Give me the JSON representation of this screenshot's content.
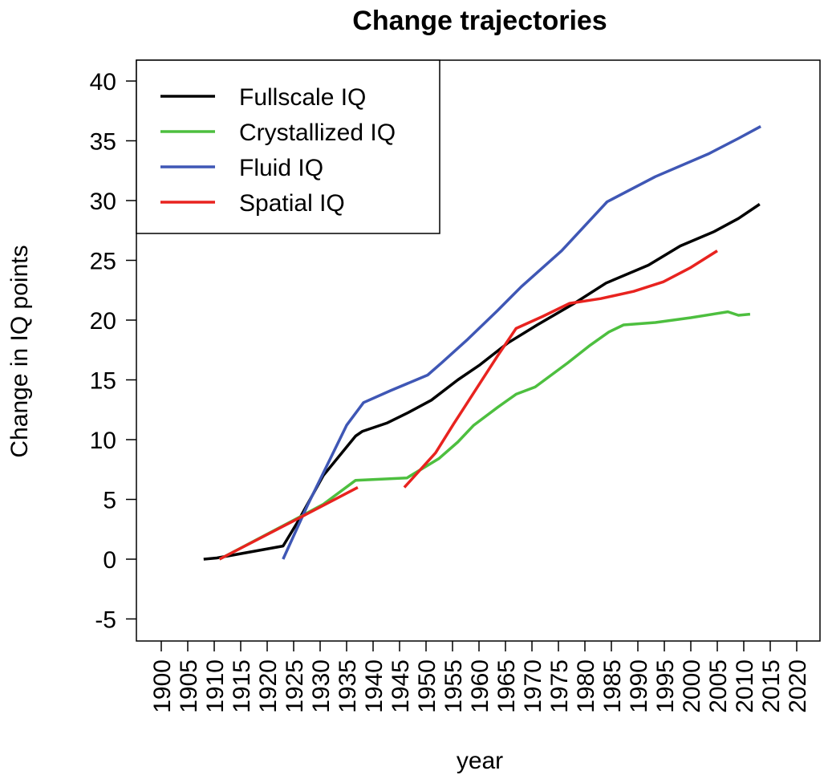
{
  "chart_data": {
    "type": "line",
    "title": "Change trajectories",
    "xlabel": "year",
    "ylabel": "Change in IQ points",
    "xlim": [
      1895,
      2025
    ],
    "ylim": [
      -7,
      42
    ],
    "xticks": [
      1900,
      1905,
      1910,
      1915,
      1920,
      1925,
      1930,
      1935,
      1940,
      1945,
      1950,
      1955,
      1960,
      1965,
      1970,
      1975,
      1980,
      1985,
      1990,
      1995,
      2000,
      2005,
      2010,
      2015,
      2020
    ],
    "yticks": [
      -5,
      0,
      5,
      10,
      15,
      20,
      25,
      30,
      35,
      40
    ],
    "grid": false,
    "legend_position": "top-left",
    "series": [
      {
        "name": "Fullscale IQ",
        "color": "#000000",
        "segments": [
          [
            [
              1908,
              0
            ],
            [
              1910.5,
              0.1
            ],
            [
              1923,
              1.1
            ],
            [
              1925.6,
              3
            ],
            [
              1930.6,
              7
            ],
            [
              1936.7,
              10.3
            ],
            [
              1938,
              10.7
            ],
            [
              1942.7,
              11.4
            ],
            [
              1946.8,
              12.3
            ],
            [
              1951,
              13.3
            ],
            [
              1956,
              15
            ],
            [
              1960,
              16.2
            ],
            [
              1965.5,
              18.1
            ],
            [
              1971,
              19.6
            ],
            [
              1978,
              21.4
            ],
            [
              1984,
              23.1
            ],
            [
              1992,
              24.6
            ],
            [
              1998,
              26.2
            ],
            [
              2004.4,
              27.4
            ],
            [
              2009,
              28.5
            ],
            [
              2013,
              29.7
            ]
          ]
        ]
      },
      {
        "name": "Crystallized IQ",
        "color": "#4DBF3F",
        "segments": [
          [
            [
              1911,
              0
            ],
            [
              1925.6,
              3.4
            ],
            [
              1930.6,
              4.6
            ],
            [
              1936.7,
              6.6
            ],
            [
              1946.4,
              6.8
            ],
            [
              1952.4,
              8.4
            ],
            [
              1956,
              9.8
            ],
            [
              1959,
              11.2
            ],
            [
              1963.5,
              12.7
            ],
            [
              1967,
              13.8
            ],
            [
              1970.6,
              14.4
            ],
            [
              1976.7,
              16.4
            ],
            [
              1981,
              17.9
            ],
            [
              1984.5,
              19
            ],
            [
              1987.3,
              19.6
            ],
            [
              1993.3,
              19.8
            ],
            [
              2000,
              20.2
            ],
            [
              2007,
              20.7
            ],
            [
              2009,
              20.4
            ],
            [
              2011.2,
              20.5
            ]
          ]
        ]
      },
      {
        "name": "Fluid IQ",
        "color": "#3F57B5",
        "segments": [
          [
            [
              1923,
              0
            ],
            [
              1927.6,
              4.5
            ],
            [
              1935,
              11.2
            ],
            [
              1938.2,
              13.1
            ],
            [
              1943.3,
              14.1
            ],
            [
              1950.3,
              15.4
            ],
            [
              1952.9,
              16.4
            ],
            [
              1957.9,
              18.4
            ],
            [
              1963.5,
              20.8
            ],
            [
              1968,
              22.8
            ],
            [
              1975.6,
              25.8
            ],
            [
              1984.2,
              29.9
            ],
            [
              1993.3,
              32
            ],
            [
              2003.3,
              33.9
            ],
            [
              2009,
              35.2
            ],
            [
              2013.2,
              36.2
            ]
          ]
        ]
      },
      {
        "name": "Spatial IQ",
        "color": "#E8231F",
        "segments": [
          [
            [
              1911,
              0
            ],
            [
              1926.7,
              3.6
            ],
            [
              1937.1,
              6.0
            ]
          ],
          [
            [
              1945.9,
              6.0
            ],
            [
              1951.8,
              8.9
            ],
            [
              1955.2,
              11.3
            ],
            [
              1963.5,
              17.0
            ],
            [
              1967,
              19.3
            ],
            [
              1972,
              20.3
            ],
            [
              1977.1,
              21.4
            ],
            [
              1983,
              21.8
            ],
            [
              1989.2,
              22.4
            ],
            [
              1994.8,
              23.2
            ],
            [
              2000,
              24.4
            ],
            [
              2005,
              25.8
            ]
          ]
        ]
      }
    ]
  }
}
